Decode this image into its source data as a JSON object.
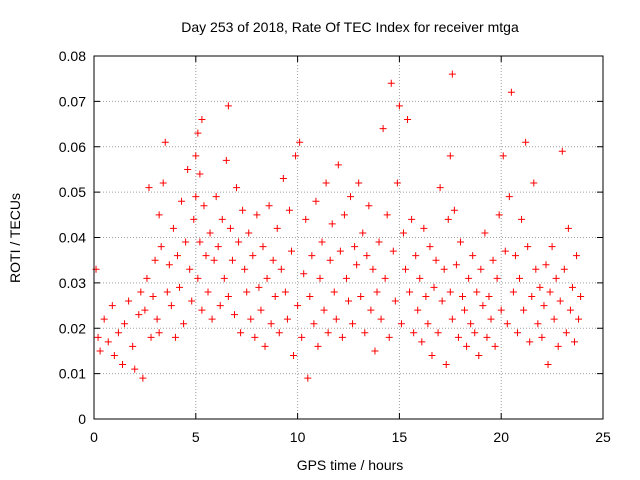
{
  "chart_data": {
    "type": "scatter",
    "title": "Day 253 of 2018, Rate Of TEC Index for receiver mtga",
    "xlabel": "GPS time / hours",
    "ylabel": "ROTI / TECUs",
    "xlim": [
      0,
      25
    ],
    "ylim": [
      0,
      0.08
    ],
    "xticks": [
      "0",
      "5",
      "10",
      "15",
      "20",
      "25"
    ],
    "yticks": [
      "0",
      "0.01",
      "0.02",
      "0.03",
      "0.04",
      "0.05",
      "0.06",
      "0.07",
      "0.08"
    ],
    "grid": true,
    "marker": "plus",
    "color": "#ff0000",
    "series": [
      {
        "x": [
          0.1,
          0.2,
          0.3,
          0.5,
          0.7,
          0.9,
          1.0,
          1.2,
          1.4,
          1.5,
          1.7,
          1.9,
          2.0,
          2.2,
          2.3,
          2.4,
          2.5,
          2.6,
          2.7,
          2.8,
          2.9,
          3.0,
          3.1,
          3.2,
          3.2,
          3.3,
          3.4,
          3.5,
          3.6,
          3.7,
          3.8,
          3.9,
          4.0,
          4.1,
          4.2,
          4.3,
          4.4,
          4.5,
          4.6,
          4.7,
          4.8,
          4.9,
          5.0,
          5.0,
          5.1,
          5.1,
          5.2,
          5.2,
          5.3,
          5.3,
          5.4,
          5.5,
          5.6,
          5.7,
          5.8,
          5.9,
          6.0,
          6.1,
          6.2,
          6.3,
          6.4,
          6.5,
          6.6,
          6.6,
          6.7,
          6.8,
          6.9,
          7.0,
          7.1,
          7.2,
          7.3,
          7.4,
          7.5,
          7.6,
          7.7,
          7.8,
          7.9,
          8.0,
          8.1,
          8.2,
          8.3,
          8.4,
          8.5,
          8.6,
          8.7,
          8.8,
          8.9,
          9.0,
          9.1,
          9.2,
          9.3,
          9.4,
          9.5,
          9.6,
          9.7,
          9.8,
          9.9,
          10.0,
          10.1,
          10.2,
          10.3,
          10.4,
          10.5,
          10.6,
          10.7,
          10.8,
          10.9,
          11.0,
          11.1,
          11.2,
          11.3,
          11.4,
          11.5,
          11.6,
          11.7,
          11.8,
          11.9,
          12.0,
          12.1,
          12.2,
          12.3,
          12.4,
          12.5,
          12.6,
          12.7,
          12.8,
          12.9,
          13.0,
          13.1,
          13.2,
          13.3,
          13.4,
          13.5,
          13.6,
          13.7,
          13.8,
          13.9,
          14.0,
          14.1,
          14.2,
          14.3,
          14.4,
          14.5,
          14.6,
          14.7,
          14.8,
          14.9,
          15.0,
          15.1,
          15.2,
          15.3,
          15.4,
          15.5,
          15.6,
          15.7,
          15.8,
          15.9,
          16.0,
          16.1,
          16.2,
          16.3,
          16.4,
          16.5,
          16.6,
          16.7,
          16.8,
          16.9,
          17.0,
          17.1,
          17.2,
          17.3,
          17.4,
          17.5,
          17.5,
          17.6,
          17.6,
          17.7,
          17.8,
          17.9,
          18.0,
          18.1,
          18.2,
          18.3,
          18.4,
          18.5,
          18.6,
          18.7,
          18.8,
          18.9,
          19.0,
          19.1,
          19.2,
          19.3,
          19.4,
          19.5,
          19.6,
          19.7,
          19.8,
          19.9,
          20.0,
          20.1,
          20.2,
          20.3,
          20.4,
          20.5,
          20.6,
          20.7,
          20.8,
          20.9,
          21.0,
          21.1,
          21.2,
          21.3,
          21.4,
          21.5,
          21.6,
          21.7,
          21.8,
          21.9,
          22.0,
          22.1,
          22.2,
          22.3,
          22.4,
          22.5,
          22.6,
          22.7,
          22.8,
          22.9,
          23.0,
          23.1,
          23.2,
          23.3,
          23.4,
          23.5,
          23.6,
          23.7,
          23.8,
          23.9
        ],
        "y": [
          0.033,
          0.018,
          0.015,
          0.022,
          0.017,
          0.025,
          0.014,
          0.019,
          0.012,
          0.021,
          0.026,
          0.016,
          0.011,
          0.023,
          0.028,
          0.009,
          0.024,
          0.031,
          0.051,
          0.018,
          0.027,
          0.035,
          0.022,
          0.045,
          0.019,
          0.038,
          0.052,
          0.061,
          0.028,
          0.034,
          0.025,
          0.042,
          0.018,
          0.036,
          0.029,
          0.048,
          0.021,
          0.039,
          0.055,
          0.033,
          0.026,
          0.044,
          0.058,
          0.049,
          0.063,
          0.031,
          0.054,
          0.039,
          0.066,
          0.024,
          0.047,
          0.036,
          0.028,
          0.041,
          0.022,
          0.035,
          0.049,
          0.038,
          0.025,
          0.044,
          0.031,
          0.057,
          0.069,
          0.027,
          0.042,
          0.035,
          0.023,
          0.051,
          0.039,
          0.019,
          0.046,
          0.033,
          0.028,
          0.041,
          0.022,
          0.036,
          0.018,
          0.045,
          0.029,
          0.024,
          0.038,
          0.016,
          0.031,
          0.047,
          0.021,
          0.035,
          0.027,
          0.042,
          0.019,
          0.033,
          0.053,
          0.028,
          0.022,
          0.046,
          0.037,
          0.014,
          0.058,
          0.025,
          0.061,
          0.018,
          0.032,
          0.044,
          0.009,
          0.027,
          0.036,
          0.021,
          0.048,
          0.016,
          0.031,
          0.039,
          0.024,
          0.052,
          0.019,
          0.035,
          0.043,
          0.028,
          0.022,
          0.056,
          0.037,
          0.018,
          0.045,
          0.031,
          0.026,
          0.049,
          0.021,
          0.038,
          0.034,
          0.052,
          0.027,
          0.041,
          0.019,
          0.036,
          0.047,
          0.024,
          0.033,
          0.015,
          0.028,
          0.039,
          0.022,
          0.064,
          0.031,
          0.045,
          0.018,
          0.074,
          0.037,
          0.026,
          0.052,
          0.069,
          0.021,
          0.041,
          0.033,
          0.066,
          0.028,
          0.044,
          0.019,
          0.036,
          0.024,
          0.031,
          0.017,
          0.042,
          0.027,
          0.021,
          0.038,
          0.014,
          0.029,
          0.035,
          0.019,
          0.051,
          0.026,
          0.033,
          0.012,
          0.044,
          0.028,
          0.058,
          0.022,
          0.076,
          0.046,
          0.034,
          0.018,
          0.039,
          0.027,
          0.024,
          0.016,
          0.031,
          0.021,
          0.036,
          0.019,
          0.028,
          0.014,
          0.033,
          0.025,
          0.041,
          0.018,
          0.027,
          0.022,
          0.035,
          0.016,
          0.031,
          0.045,
          0.024,
          0.058,
          0.037,
          0.021,
          0.049,
          0.072,
          0.028,
          0.036,
          0.019,
          0.031,
          0.044,
          0.024,
          0.061,
          0.038,
          0.017,
          0.027,
          0.052,
          0.033,
          0.021,
          0.029,
          0.018,
          0.025,
          0.034,
          0.012,
          0.028,
          0.038,
          0.022,
          0.031,
          0.016,
          0.026,
          0.059,
          0.033,
          0.019,
          0.042,
          0.024,
          0.029,
          0.017,
          0.036,
          0.022,
          0.027
        ]
      }
    ]
  }
}
